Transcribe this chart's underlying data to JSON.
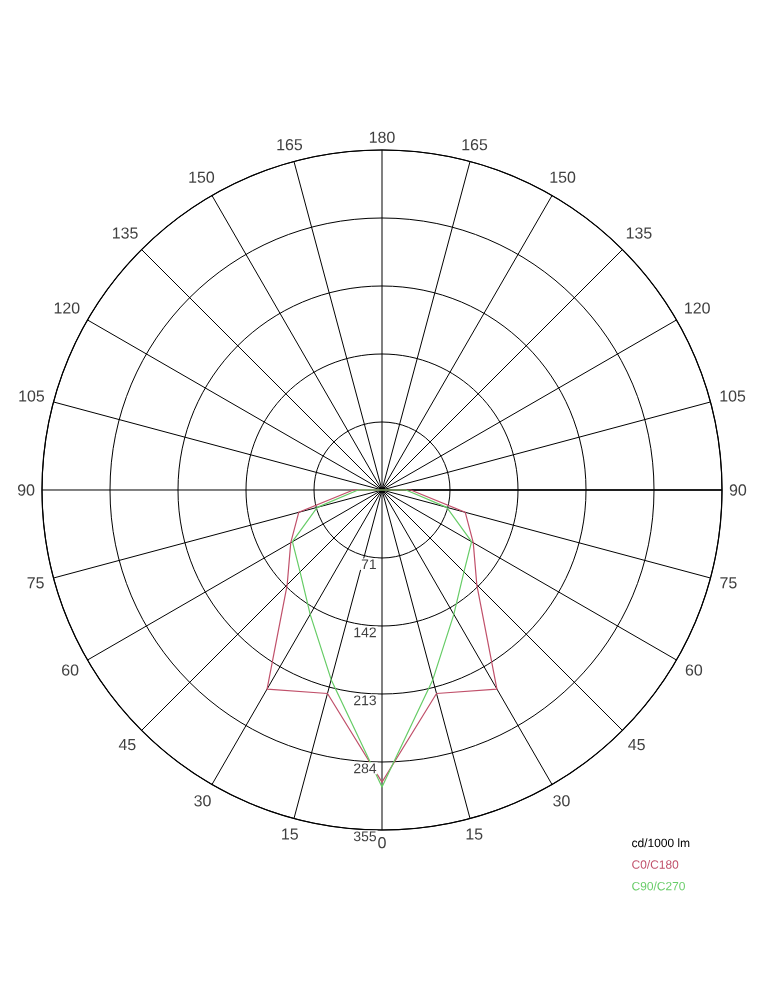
{
  "chart_data": {
    "type": "radar",
    "categories": [
      "180",
      "165",
      "150",
      "135",
      "120",
      "105",
      "90",
      "75",
      "60",
      "45",
      "30",
      "15",
      "0",
      "15",
      "30",
      "45",
      "60",
      "75",
      "90",
      "105",
      "120",
      "135",
      "150",
      "165"
    ],
    "series": [
      {
        "name": "C0/C180",
        "color": "#c0506a",
        "values": [
          0,
          0,
          0,
          0,
          0,
          0,
          30,
          90,
          110,
          140,
          240,
          220,
          305,
          220,
          240,
          140,
          110,
          90,
          30,
          0,
          0,
          0,
          0,
          0
        ]
      },
      {
        "name": "C90/C270",
        "color": "#66cc66",
        "values": [
          0,
          0,
          0,
          0,
          0,
          0,
          25,
          70,
          108,
          121,
          150,
          205,
          310,
          205,
          150,
          121,
          108,
          70,
          25,
          0,
          0,
          0,
          0,
          0
        ]
      }
    ],
    "ylim": [
      0,
      355
    ],
    "yticks": [
      71,
      142,
      213,
      284,
      355
    ],
    "legend_title": "cd/1000 lm",
    "legend": "bottom right",
    "grid": true,
    "marker": "none",
    "line_style": "solid"
  }
}
